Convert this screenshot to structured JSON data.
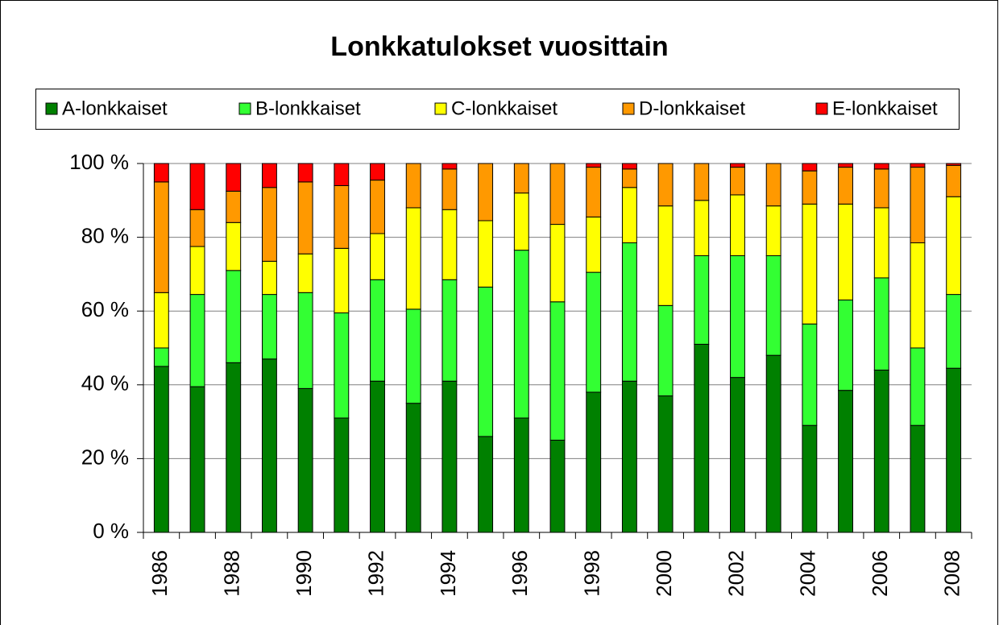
{
  "chart_data": {
    "type": "stacked_bar",
    "title": "Lonkkatulokset vuosittain",
    "categories": [
      "1986",
      null,
      "1988",
      null,
      "1990",
      null,
      "1992",
      null,
      "1994",
      null,
      "1996",
      null,
      "1998",
      null,
      "2000",
      null,
      "2002",
      null,
      "2004",
      null,
      "2006",
      null,
      "2008"
    ],
    "series": [
      {
        "name": "A-lonkkaiset",
        "color": "#008000",
        "values": [
          45,
          39.5,
          46,
          47,
          39,
          31,
          41,
          35,
          41,
          26,
          31,
          25,
          38,
          41,
          37,
          51,
          42,
          48,
          29,
          38.5,
          44,
          29,
          44.5
        ]
      },
      {
        "name": "B-lonkkaiset",
        "color": "#33ff33",
        "values": [
          5,
          25,
          25,
          17.5,
          26,
          28.5,
          27.5,
          25.5,
          27.5,
          40.5,
          45.5,
          37.5,
          32.5,
          37.5,
          24.5,
          24,
          33,
          27,
          27.5,
          24.5,
          25,
          21,
          20
        ]
      },
      {
        "name": "C-lonkkaiset",
        "color": "#ffff00",
        "values": [
          15,
          13,
          13,
          9,
          10.5,
          17.5,
          12.5,
          27.5,
          19,
          18,
          15.5,
          21,
          15,
          15,
          27,
          15,
          16.5,
          13.5,
          32.5,
          26,
          19,
          28.5,
          26.5
        ]
      },
      {
        "name": "D-lonkkaiset",
        "color": "#ff9900",
        "values": [
          30,
          10,
          8.5,
          20,
          19.5,
          17,
          14.5,
          12,
          11,
          15.5,
          8,
          16.5,
          13.5,
          5,
          11.5,
          10,
          7.5,
          11.5,
          9,
          10,
          10.5,
          20.5,
          8.5
        ]
      },
      {
        "name": "E-lonkkaiset",
        "color": "#ff0000",
        "values": [
          5,
          12.5,
          7.5,
          6.5,
          5,
          6,
          4.5,
          0,
          1.5,
          0,
          0,
          0,
          1,
          1.5,
          0,
          0,
          1,
          0,
          2,
          1,
          1.5,
          1,
          0.5
        ]
      }
    ],
    "ylim": [
      0,
      100
    ],
    "yticks": [
      {
        "value": 0,
        "label": "0 %"
      },
      {
        "value": 20,
        "label": "20 %"
      },
      {
        "value": 40,
        "label": "40 %"
      },
      {
        "value": 60,
        "label": "60 %"
      },
      {
        "value": 80,
        "label": "80 %"
      },
      {
        "value": 100,
        "label": "100 %"
      }
    ],
    "grid": true,
    "legend": "top"
  }
}
